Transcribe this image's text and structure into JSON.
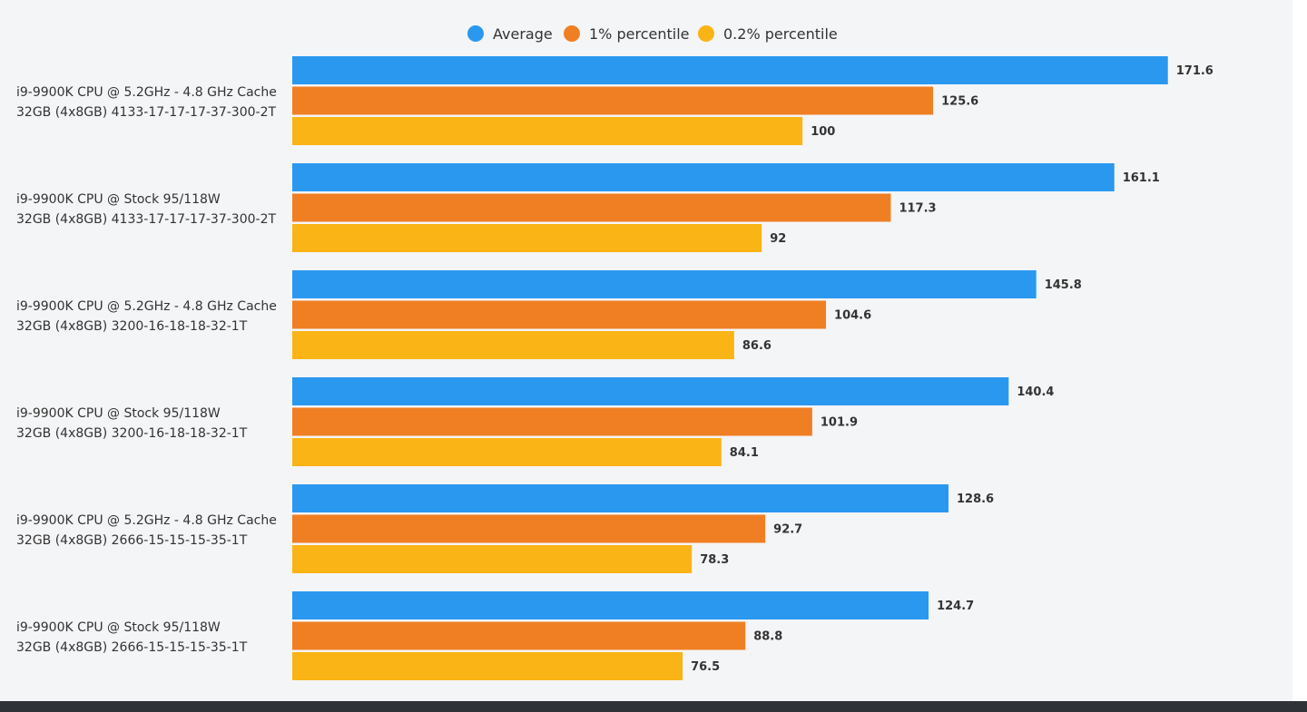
{
  "chart_data": {
    "type": "bar",
    "orientation": "horizontal",
    "title": "",
    "xlabel": "",
    "ylabel": "",
    "grid": false,
    "legend_position": "top-center",
    "xlim": [
      0,
      190
    ],
    "categories": [
      [
        "i9-9900K CPU @ 5.2GHz - 4.8 GHz Cache",
        "32GB (4x8GB) 4133-17-17-17-37-300-2T"
      ],
      [
        "i9-9900K CPU @ Stock 95/118W",
        "32GB (4x8GB) 4133-17-17-17-37-300-2T"
      ],
      [
        "i9-9900K CPU @ 5.2GHz - 4.8 GHz Cache",
        "32GB (4x8GB) 3200-16-18-18-32-1T"
      ],
      [
        "i9-9900K CPU @ Stock 95/118W",
        "32GB (4x8GB) 3200-16-18-18-32-1T"
      ],
      [
        "i9-9900K CPU @ 5.2GHz - 4.8 GHz Cache",
        "32GB (4x8GB) 2666-15-15-15-35-1T"
      ],
      [
        "i9-9900K CPU @ Stock 95/118W",
        "32GB (4x8GB) 2666-15-15-15-35-1T"
      ]
    ],
    "series": [
      {
        "name": "Average",
        "color": "#2b98f0",
        "values": [
          171.6,
          161.1,
          145.8,
          140.4,
          128.6,
          124.7
        ],
        "value_labels": [
          "171.6",
          "161.1",
          "145.8",
          "140.4",
          "128.6",
          "124.7"
        ]
      },
      {
        "name": "1% percentile",
        "color": "#f07f24",
        "values": [
          125.6,
          117.3,
          104.6,
          101.9,
          92.7,
          88.8
        ],
        "value_labels": [
          "125.6",
          "117.3",
          "104.6",
          "101.9",
          "92.7",
          "88.8"
        ]
      },
      {
        "name": "0.2% percentile",
        "color": "#fbb416",
        "values": [
          100,
          92,
          86.6,
          84.1,
          78.3,
          76.5
        ],
        "value_labels": [
          "100",
          "92",
          "86.6",
          "84.1",
          "78.3",
          "76.5"
        ]
      }
    ]
  }
}
